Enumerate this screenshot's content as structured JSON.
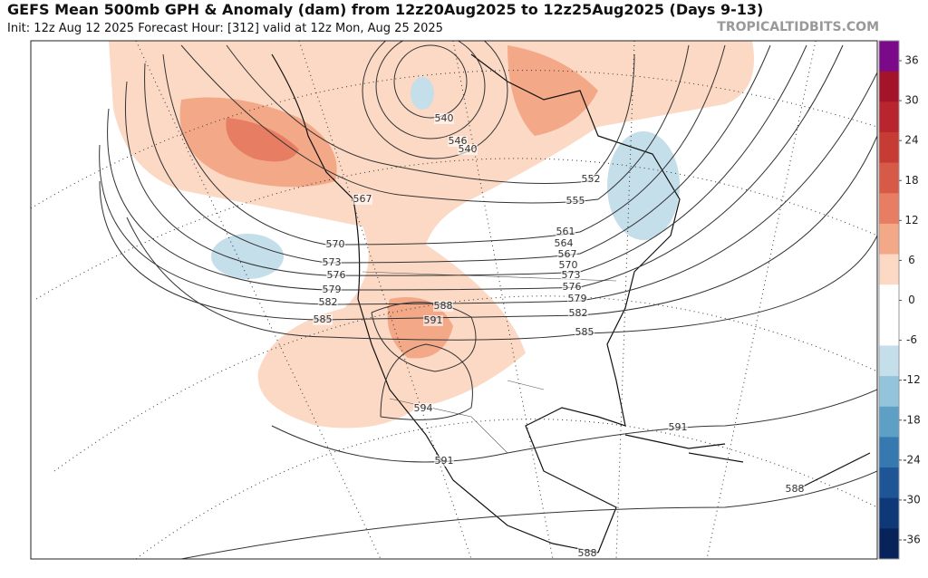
{
  "header": {
    "title": "GEFS Mean 500mb GPH & Anomaly (dam) from 12z20Aug2025 to 12z25Aug2025 (Days 9-13)",
    "subtitle": "Init: 12z Aug 12 2025   Forecast Hour: [312]   valid at 12z Mon, Aug 25 2025",
    "source": "TROPICALTIDBITS.COM"
  },
  "contour_labels": [
    540,
    546,
    540,
    552,
    555,
    561,
    564,
    567,
    570,
    573,
    576,
    579,
    582,
    585,
    567,
    570,
    573,
    576,
    579,
    582,
    585,
    588,
    591,
    594,
    591,
    591,
    588,
    588
  ],
  "colorbar": {
    "ticks": [
      36,
      30,
      24,
      18,
      12,
      6,
      0,
      -6,
      -12,
      -18,
      -24,
      -30,
      -36
    ],
    "colors": [
      "#7a0a8a",
      "#a3142a",
      "#b8252e",
      "#c73b35",
      "#d75a48",
      "#e77d62",
      "#f3a888",
      "#fcd9c5",
      "#ffffff",
      "#ffffff",
      "#c4deea",
      "#94c4dc",
      "#5e9fc6",
      "#3679b0",
      "#1d5596",
      "#0f3878",
      "#08235a"
    ]
  }
}
